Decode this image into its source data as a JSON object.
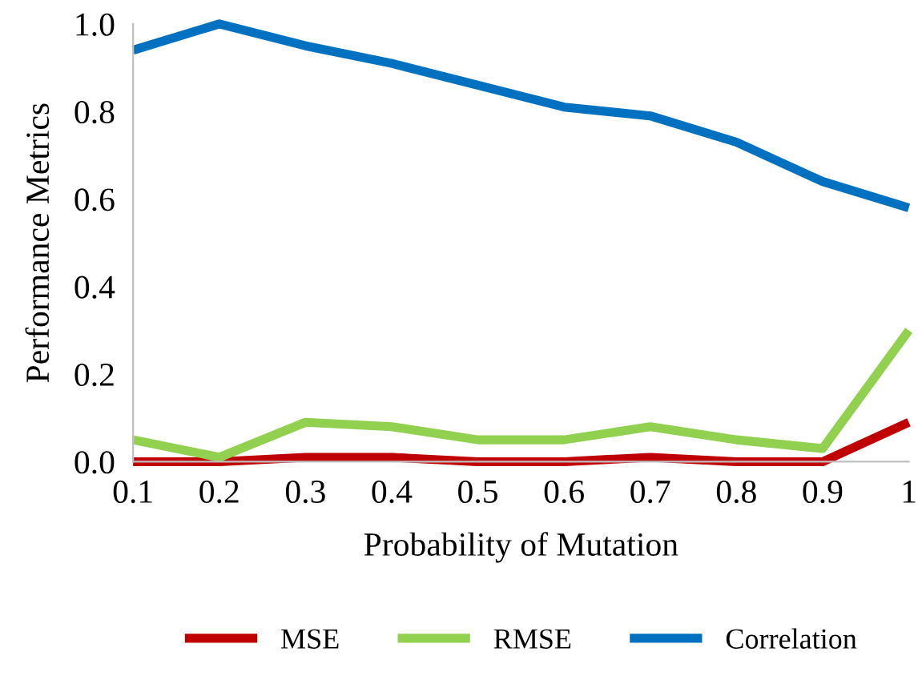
{
  "chart_data": {
    "type": "line",
    "xlabel": "Probability of Mutation",
    "ylabel": "Performance Metrics",
    "x": [
      0.1,
      0.2,
      0.3,
      0.4,
      0.5,
      0.6,
      0.7,
      0.8,
      0.9,
      1
    ],
    "series": [
      {
        "name": "MSE",
        "color": "#c00000",
        "values": [
          0.0,
          0.0,
          0.01,
          0.01,
          0.0,
          0.0,
          0.01,
          0.0,
          0.0,
          0.09
        ]
      },
      {
        "name": "RMSE",
        "color": "#92d050",
        "values": [
          0.05,
          0.01,
          0.09,
          0.08,
          0.05,
          0.05,
          0.08,
          0.05,
          0.03,
          0.3
        ]
      },
      {
        "name": "Correlation",
        "color": "#0070c0",
        "values": [
          0.94,
          1.0,
          0.95,
          0.91,
          0.86,
          0.81,
          0.79,
          0.73,
          0.64,
          0.58
        ]
      }
    ],
    "xlim": [
      0.1,
      1
    ],
    "xticks": [
      0.1,
      0.2,
      0.3,
      0.4,
      0.5,
      0.6,
      0.7,
      0.8,
      0.9,
      1
    ],
    "ylim": [
      0,
      1
    ],
    "yticks": [
      {
        "value": 0,
        "label": "0.0"
      },
      {
        "value": 0.2,
        "label": "0.2"
      },
      {
        "value": 0.4,
        "label": "0.4"
      },
      {
        "value": 0.6,
        "label": "0.6"
      },
      {
        "value": 0.8,
        "label": "0.8"
      },
      {
        "value": 1,
        "label": "1.0"
      }
    ],
    "grid": false,
    "legend": "bottom",
    "marker": "none",
    "line_style": "solid"
  }
}
